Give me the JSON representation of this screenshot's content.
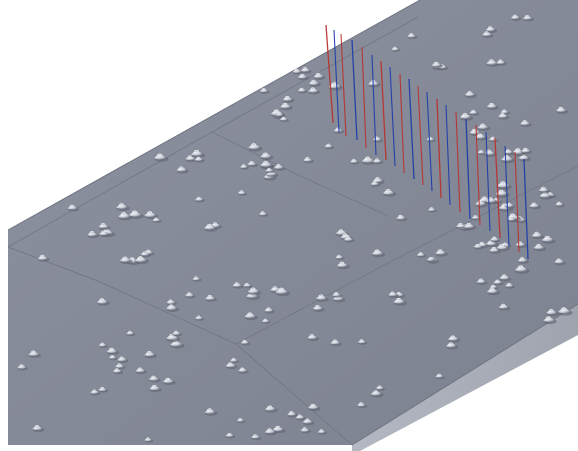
{
  "viewport": {
    "background": "#ffffff",
    "content": "3d-model-view"
  },
  "model": {
    "plate_top_color": "#858a98",
    "plate_side_color": "#a7acb7",
    "plate_edge_color": "#6f7381",
    "bump_highlight_color": "#e5e8ef",
    "bump_shadow_color": "#5f6370",
    "line_colors": {
      "red": "#b8332f",
      "blue": "#1f3ea8"
    }
  }
}
